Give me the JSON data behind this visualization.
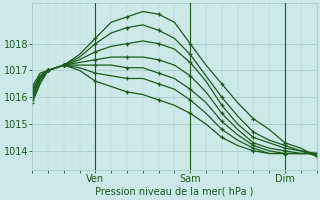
{
  "xlabel": "Pression niveau de la mer( hPa )",
  "bg_color": "#cce8e8",
  "grid_color": "#aacccc",
  "line_color": "#1a5c1a",
  "ylim": [
    1013.3,
    1019.5
  ],
  "xlim": [
    0,
    108
  ],
  "xticks": [
    24,
    60,
    96
  ],
  "xtick_labels": [
    "Ven",
    "Sam",
    "Dim"
  ],
  "yticks": [
    1014,
    1015,
    1016,
    1017,
    1018
  ],
  "series": [
    [
      [
        0,
        1015.8
      ],
      [
        3,
        1016.5
      ],
      [
        6,
        1017.0
      ],
      [
        9,
        1017.1
      ],
      [
        12,
        1017.2
      ],
      [
        18,
        1017.6
      ],
      [
        24,
        1018.2
      ],
      [
        30,
        1018.8
      ],
      [
        36,
        1019.0
      ],
      [
        42,
        1019.2
      ],
      [
        48,
        1019.1
      ],
      [
        54,
        1018.8
      ],
      [
        60,
        1018.0
      ],
      [
        66,
        1017.2
      ],
      [
        72,
        1016.5
      ],
      [
        78,
        1015.8
      ],
      [
        84,
        1015.2
      ],
      [
        90,
        1014.8
      ],
      [
        96,
        1014.3
      ],
      [
        102,
        1014.1
      ],
      [
        108,
        1013.8
      ]
    ],
    [
      [
        0,
        1015.9
      ],
      [
        3,
        1016.6
      ],
      [
        6,
        1017.0
      ],
      [
        9,
        1017.1
      ],
      [
        12,
        1017.2
      ],
      [
        18,
        1017.5
      ],
      [
        24,
        1018.0
      ],
      [
        30,
        1018.4
      ],
      [
        36,
        1018.6
      ],
      [
        42,
        1018.7
      ],
      [
        48,
        1018.5
      ],
      [
        54,
        1018.2
      ],
      [
        60,
        1017.6
      ],
      [
        66,
        1016.8
      ],
      [
        72,
        1016.0
      ],
      [
        78,
        1015.3
      ],
      [
        84,
        1014.7
      ],
      [
        90,
        1014.4
      ],
      [
        96,
        1014.2
      ],
      [
        102,
        1014.0
      ],
      [
        108,
        1013.8
      ]
    ],
    [
      [
        0,
        1016.0
      ],
      [
        3,
        1016.7
      ],
      [
        6,
        1017.0
      ],
      [
        9,
        1017.1
      ],
      [
        12,
        1017.2
      ],
      [
        18,
        1017.4
      ],
      [
        24,
        1017.7
      ],
      [
        30,
        1017.9
      ],
      [
        36,
        1018.0
      ],
      [
        42,
        1018.1
      ],
      [
        48,
        1018.0
      ],
      [
        54,
        1017.8
      ],
      [
        60,
        1017.3
      ],
      [
        66,
        1016.6
      ],
      [
        72,
        1015.7
      ],
      [
        78,
        1015.0
      ],
      [
        84,
        1014.5
      ],
      [
        90,
        1014.3
      ],
      [
        96,
        1014.1
      ],
      [
        102,
        1014.0
      ],
      [
        108,
        1013.9
      ]
    ],
    [
      [
        0,
        1016.1
      ],
      [
        3,
        1016.7
      ],
      [
        6,
        1017.0
      ],
      [
        9,
        1017.1
      ],
      [
        12,
        1017.2
      ],
      [
        18,
        1017.3
      ],
      [
        24,
        1017.4
      ],
      [
        30,
        1017.5
      ],
      [
        36,
        1017.5
      ],
      [
        42,
        1017.5
      ],
      [
        48,
        1017.4
      ],
      [
        54,
        1017.2
      ],
      [
        60,
        1016.8
      ],
      [
        66,
        1016.2
      ],
      [
        72,
        1015.4
      ],
      [
        78,
        1014.8
      ],
      [
        84,
        1014.3
      ],
      [
        90,
        1014.1
      ],
      [
        96,
        1014.0
      ],
      [
        102,
        1013.9
      ],
      [
        108,
        1013.9
      ]
    ],
    [
      [
        0,
        1016.2
      ],
      [
        3,
        1016.8
      ],
      [
        6,
        1017.0
      ],
      [
        9,
        1017.1
      ],
      [
        12,
        1017.2
      ],
      [
        18,
        1017.2
      ],
      [
        24,
        1017.2
      ],
      [
        30,
        1017.2
      ],
      [
        36,
        1017.1
      ],
      [
        42,
        1017.1
      ],
      [
        48,
        1016.9
      ],
      [
        54,
        1016.7
      ],
      [
        60,
        1016.3
      ],
      [
        66,
        1015.8
      ],
      [
        72,
        1015.1
      ],
      [
        78,
        1014.6
      ],
      [
        84,
        1014.2
      ],
      [
        90,
        1014.0
      ],
      [
        96,
        1013.9
      ],
      [
        102,
        1013.9
      ],
      [
        108,
        1013.9
      ]
    ],
    [
      [
        0,
        1016.3
      ],
      [
        3,
        1016.8
      ],
      [
        6,
        1017.0
      ],
      [
        9,
        1017.1
      ],
      [
        12,
        1017.2
      ],
      [
        18,
        1017.1
      ],
      [
        24,
        1016.9
      ],
      [
        30,
        1016.8
      ],
      [
        36,
        1016.7
      ],
      [
        42,
        1016.7
      ],
      [
        48,
        1016.5
      ],
      [
        54,
        1016.3
      ],
      [
        60,
        1015.9
      ],
      [
        66,
        1015.4
      ],
      [
        72,
        1014.8
      ],
      [
        78,
        1014.4
      ],
      [
        84,
        1014.1
      ],
      [
        90,
        1013.9
      ],
      [
        96,
        1013.9
      ],
      [
        102,
        1013.9
      ],
      [
        108,
        1013.9
      ]
    ],
    [
      [
        0,
        1016.4
      ],
      [
        3,
        1016.9
      ],
      [
        6,
        1017.0
      ],
      [
        9,
        1017.1
      ],
      [
        12,
        1017.2
      ],
      [
        18,
        1017.0
      ],
      [
        24,
        1016.6
      ],
      [
        30,
        1016.4
      ],
      [
        36,
        1016.2
      ],
      [
        42,
        1016.1
      ],
      [
        48,
        1015.9
      ],
      [
        54,
        1015.7
      ],
      [
        60,
        1015.4
      ],
      [
        66,
        1015.0
      ],
      [
        72,
        1014.5
      ],
      [
        78,
        1014.2
      ],
      [
        84,
        1014.0
      ],
      [
        90,
        1013.9
      ],
      [
        96,
        1013.9
      ],
      [
        102,
        1013.9
      ],
      [
        108,
        1013.9
      ]
    ]
  ]
}
